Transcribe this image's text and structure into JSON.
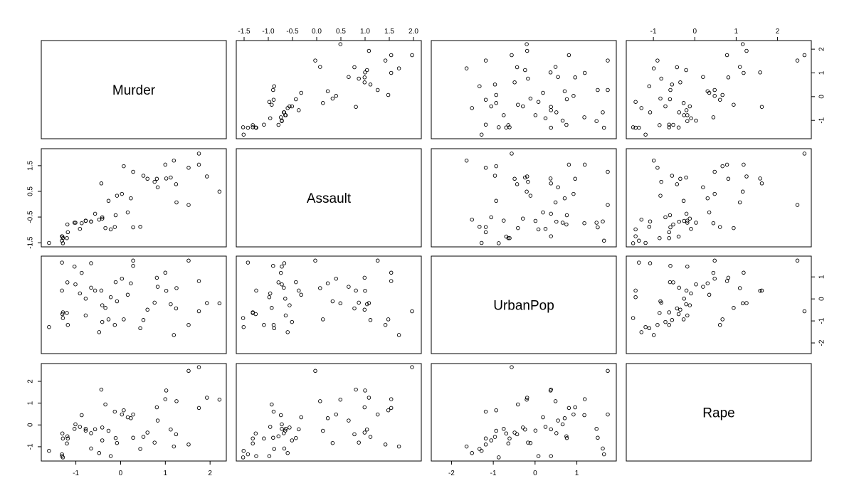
{
  "chart_data": {
    "type": "scatter",
    "variables": [
      "Murder",
      "Assault",
      "UrbanPop",
      "Rape"
    ],
    "ranges": {
      "Murder": [
        -1.62,
        2.21
      ],
      "Assault": [
        -1.52,
        2.02
      ],
      "UrbanPop": [
        -2.32,
        1.78
      ],
      "Rape": [
        -1.49,
        2.65
      ]
    },
    "ticks": {
      "Murder": {
        "values": [
          -1,
          0,
          1,
          2
        ],
        "labels": [
          "-1",
          "0",
          "1",
          "2"
        ]
      },
      "Assault": {
        "values": [
          -1.5,
          -1.0,
          -0.5,
          0.0,
          0.5,
          1.0,
          1.5,
          2.0
        ],
        "labels": [
          "-1.5",
          "-1.0",
          "-0.5",
          "0.0",
          "0.5",
          "1.0",
          "1.5",
          "2.0"
        ]
      },
      "Assault_left": {
        "values": [
          -1.5,
          -0.5,
          0.5,
          1.5
        ],
        "labels": [
          "-1.5",
          "-0.5",
          "0.5",
          "1.5"
        ]
      },
      "UrbanPop": {
        "values": [
          -2,
          -1,
          0,
          1
        ],
        "labels": [
          "-2",
          "-1",
          "0",
          "1"
        ]
      },
      "Rape": {
        "values": [
          -1,
          0,
          1,
          2
        ],
        "labels": [
          "-1",
          "0",
          "1",
          "2"
        ]
      }
    },
    "data": {
      "Murder": [
        1.24,
        0.51,
        0.07,
        0.23,
        0.28,
        0.03,
        -1.03,
        -0.43,
        1.75,
        2.21,
        -0.57,
        -1.19,
        0.6,
        -0.13,
        -1.29,
        -0.41,
        0.44,
        1.75,
        -1.3,
        0.81,
        -0.78,
        1.0,
        -1.18,
        1.93,
        0.28,
        -0.41,
        -0.78,
        1.02,
        -1.31,
        -0.08,
        0.83,
        0.76,
        1.19,
        -1.6,
        -0.11,
        -0.27,
        -0.66,
        -0.34,
        -1.01,
        1.52,
        -0.91,
        1.25,
        1.12,
        -0.66,
        -1.29,
        0.16,
        -0.87,
        -0.48,
        -1.2,
        -0.22
      ],
      "Assault": [
        0.78,
        1.11,
        1.48,
        0.23,
        1.26,
        0.4,
        -0.72,
        0.81,
        1.97,
        0.49,
        -0.37,
        -0.79,
        0.99,
        -0.89,
        -1.32,
        -0.51,
        -0.88,
        1.54,
        -1.26,
        0.99,
        -0.64,
        1.54,
        -1.09,
        1.08,
        -0.9,
        -0.56,
        -0.65,
        1.0,
        -1.42,
        0.33,
        0.66,
        0.87,
        1.7,
        -1.51,
        -0.43,
        0.13,
        -0.68,
        -0.93,
        -0.72,
        1.42,
        -0.96,
        0.07,
        1.04,
        -0.67,
        -1.52,
        -0.32,
        -0.74,
        -0.6,
        -1.32,
        -0.98
      ],
      "UrbanPop": [
        -0.43,
        -0.96,
        -0.93,
        0.71,
        1.74,
        0.92,
        1.47,
        0.38,
        -0.56,
        -0.2,
        0.38,
        0.75,
        -0.49,
        -1.18,
        -0.61,
        -1.05,
        -1.33,
        0.81,
        -0.69,
        0.96,
        -0.75,
        1.19,
        -1.18,
        -0.19,
        1.5,
        -0.29,
        0.01,
        0.37,
        1.65,
        -0.11,
        0.55,
        -0.17,
        -1.64,
        -1.28,
        0.76,
        -0.93,
        0.51,
        -0.41,
        0.66,
        -1.18,
        0.25,
        0.49,
        -0.24,
        1.62,
        -0.87,
        0.19,
        1.18,
        -1.51,
        -0.64,
        0.08
      ],
      "Rape": [
        -0.43,
        -0.55,
        0.67,
        0.31,
        0.48,
        0.48,
        -0.18,
        1.62,
        2.65,
        1.16,
        -0.2,
        -0.52,
        -0.35,
        0.61,
        -0.62,
        -0.71,
        -1.1,
        0.78,
        -0.39,
        0.81,
        -0.18,
        1.18,
        -0.62,
        1.25,
        -0.59,
        -0.12,
        -0.26,
        1.58,
        -1.35,
        -0.83,
        0.2,
        -0.81,
        -0.99,
        -1.19,
        -0.6,
        -0.27,
        -0.38,
        0.94,
        0.03,
        -0.9,
        -0.09,
        1.09,
        -0.21,
        -1.08,
        -1.49,
        0.35,
        0.45,
        -1.29,
        -0.85,
        -1.43
      ],
      "MurderExtra": [
        1.52,
        -1.31
      ],
      "AssaultExtra": [
        -0.03,
        -1.25
      ],
      "UrbanPopExtra": [
        1.74,
        0.38
      ],
      "RapeExtra": [
        2.48,
        -1.43
      ]
    },
    "xlabel": "",
    "ylabel": "",
    "grid": false,
    "legend": "none"
  }
}
